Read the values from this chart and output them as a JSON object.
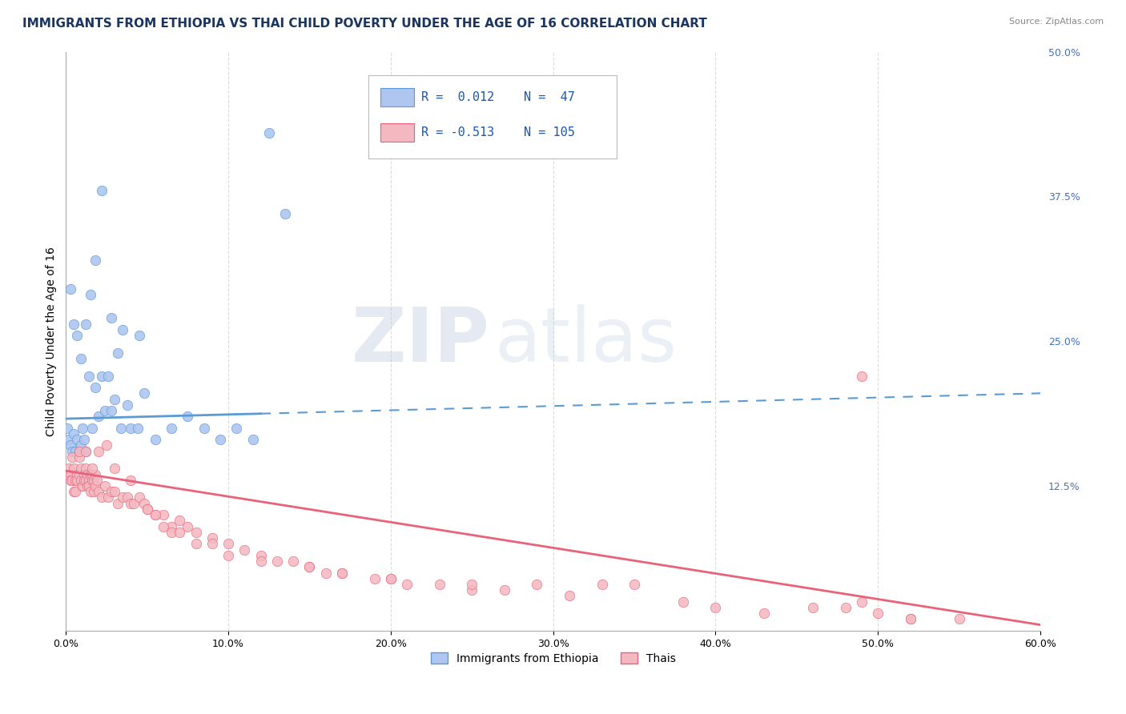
{
  "title": "IMMIGRANTS FROM ETHIOPIA VS THAI CHILD POVERTY UNDER THE AGE OF 16 CORRELATION CHART",
  "source_text": "Source: ZipAtlas.com",
  "ylabel": "Child Poverty Under the Age of 16",
  "xlim": [
    0.0,
    0.6
  ],
  "ylim": [
    0.0,
    0.5
  ],
  "xticks": [
    0.0,
    0.1,
    0.2,
    0.3,
    0.4,
    0.5,
    0.6
  ],
  "xticklabels": [
    "0.0%",
    "10.0%",
    "20.0%",
    "30.0%",
    "40.0%",
    "50.0%",
    "60.0%"
  ],
  "yticks_right": [
    0.125,
    0.25,
    0.375,
    0.5
  ],
  "ytick_right_labels": [
    "12.5%",
    "25.0%",
    "37.5%",
    "50.0%"
  ],
  "background_color": "#ffffff",
  "grid_color": "#cccccc",
  "ethiopia_color_fill": "#aec6f0",
  "ethiopia_color_edge": "#5b9bd5",
  "thai_color_fill": "#f4b8c1",
  "thai_color_edge": "#e8637a",
  "ethiopia_x": [
    0.001,
    0.002,
    0.003,
    0.004,
    0.005,
    0.006,
    0.007,
    0.008,
    0.009,
    0.01,
    0.011,
    0.012,
    0.014,
    0.016,
    0.018,
    0.02,
    0.022,
    0.024,
    0.026,
    0.028,
    0.03,
    0.032,
    0.034,
    0.038,
    0.04,
    0.044,
    0.048,
    0.055,
    0.065,
    0.075,
    0.085,
    0.095,
    0.105,
    0.115,
    0.125,
    0.135,
    0.003,
    0.005,
    0.007,
    0.009,
    0.012,
    0.015,
    0.018,
    0.022,
    0.028,
    0.035,
    0.045
  ],
  "ethiopia_y": [
    0.175,
    0.165,
    0.16,
    0.155,
    0.17,
    0.155,
    0.165,
    0.155,
    0.16,
    0.175,
    0.165,
    0.155,
    0.22,
    0.175,
    0.21,
    0.185,
    0.22,
    0.19,
    0.22,
    0.19,
    0.2,
    0.24,
    0.175,
    0.195,
    0.175,
    0.175,
    0.205,
    0.165,
    0.175,
    0.185,
    0.175,
    0.165,
    0.175,
    0.165,
    0.43,
    0.36,
    0.295,
    0.265,
    0.255,
    0.235,
    0.265,
    0.29,
    0.32,
    0.38,
    0.27,
    0.26,
    0.255
  ],
  "thai_x": [
    0.001,
    0.002,
    0.003,
    0.003,
    0.004,
    0.004,
    0.005,
    0.005,
    0.006,
    0.006,
    0.007,
    0.007,
    0.008,
    0.008,
    0.009,
    0.009,
    0.01,
    0.01,
    0.011,
    0.011,
    0.012,
    0.012,
    0.013,
    0.013,
    0.014,
    0.014,
    0.015,
    0.015,
    0.016,
    0.016,
    0.017,
    0.017,
    0.018,
    0.018,
    0.019,
    0.02,
    0.022,
    0.024,
    0.026,
    0.028,
    0.03,
    0.032,
    0.035,
    0.038,
    0.04,
    0.042,
    0.045,
    0.048,
    0.05,
    0.055,
    0.06,
    0.065,
    0.07,
    0.075,
    0.08,
    0.09,
    0.1,
    0.11,
    0.12,
    0.13,
    0.14,
    0.15,
    0.16,
    0.17,
    0.19,
    0.2,
    0.21,
    0.23,
    0.25,
    0.27,
    0.29,
    0.31,
    0.33,
    0.35,
    0.38,
    0.4,
    0.43,
    0.46,
    0.49,
    0.52,
    0.55,
    0.48,
    0.5,
    0.52,
    0.008,
    0.012,
    0.016,
    0.02,
    0.025,
    0.03,
    0.04,
    0.05,
    0.055,
    0.06,
    0.065,
    0.07,
    0.08,
    0.09,
    0.1,
    0.12,
    0.15,
    0.17,
    0.2,
    0.25,
    0.49
  ],
  "thai_y": [
    0.135,
    0.14,
    0.135,
    0.13,
    0.15,
    0.13,
    0.12,
    0.14,
    0.13,
    0.12,
    0.135,
    0.13,
    0.15,
    0.135,
    0.14,
    0.13,
    0.125,
    0.125,
    0.135,
    0.13,
    0.14,
    0.13,
    0.125,
    0.135,
    0.13,
    0.125,
    0.12,
    0.135,
    0.13,
    0.135,
    0.12,
    0.13,
    0.125,
    0.135,
    0.13,
    0.12,
    0.115,
    0.125,
    0.115,
    0.12,
    0.12,
    0.11,
    0.115,
    0.115,
    0.11,
    0.11,
    0.115,
    0.11,
    0.105,
    0.1,
    0.1,
    0.09,
    0.095,
    0.09,
    0.085,
    0.08,
    0.075,
    0.07,
    0.065,
    0.06,
    0.06,
    0.055,
    0.05,
    0.05,
    0.045,
    0.045,
    0.04,
    0.04,
    0.035,
    0.035,
    0.04,
    0.03,
    0.04,
    0.04,
    0.025,
    0.02,
    0.015,
    0.02,
    0.22,
    0.01,
    0.01,
    0.02,
    0.015,
    0.01,
    0.155,
    0.155,
    0.14,
    0.155,
    0.16,
    0.14,
    0.13,
    0.105,
    0.1,
    0.09,
    0.085,
    0.085,
    0.075,
    0.075,
    0.065,
    0.06,
    0.055,
    0.05,
    0.045,
    0.04,
    0.025
  ],
  "legend_R_labels": [
    "R =  0.012",
    "R = -0.513"
  ],
  "legend_N_labels": [
    "N =  47",
    "N = 105"
  ],
  "legend_colors_fill": [
    "#aec6f0",
    "#f4b8c1"
  ],
  "legend_colors_edge": [
    "#5b9bd5",
    "#e8637a"
  ],
  "legend_labels": [
    "Immigrants from Ethiopia",
    "Thais"
  ],
  "watermark_zip": "ZIP",
  "watermark_atlas": "atlas",
  "title_fontsize": 11,
  "axis_label_fontsize": 10,
  "tick_fontsize": 9,
  "blue_trend_solid_end": 0.12,
  "blue_trend_y_start": 0.183,
  "blue_trend_y_end": 0.205,
  "pink_trend_y_start": 0.138,
  "pink_trend_y_end": 0.005
}
